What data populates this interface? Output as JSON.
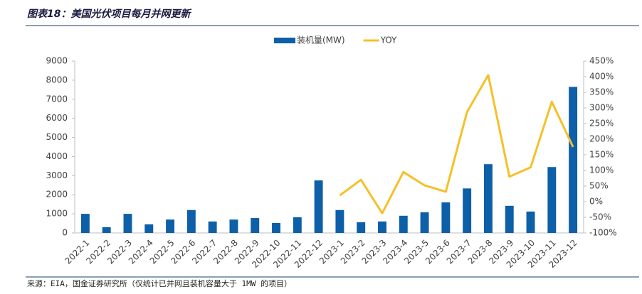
{
  "title": "图表18：美国光伏项目每月并网更新",
  "source": "来源：EIA，国金证券研究所（仅统计已并网且装机容量大于 1MW 的项目）",
  "chart_data": {
    "type": "bar",
    "categories": [
      "2022-1",
      "2022-2",
      "2022-3",
      "2022-4",
      "2022-5",
      "2022-6",
      "2022-7",
      "2022-8",
      "2022-9",
      "2022-10",
      "2022-11",
      "2022-12",
      "2023-1",
      "2023-2",
      "2023-3",
      "2023-4",
      "2023-5",
      "2023-6",
      "2023-7",
      "2023-8",
      "2023-9",
      "2023-10",
      "2023-11",
      "2023-12"
    ],
    "series": [
      {
        "name": "装机量(MW)",
        "type": "bar",
        "color": "#0d5fa8",
        "values": [
          1000,
          300,
          1000,
          450,
          700,
          1200,
          600,
          700,
          780,
          520,
          820,
          2750,
          1200,
          560,
          600,
          900,
          1080,
          1600,
          2330,
          3600,
          1420,
          1120,
          3450,
          7650
        ]
      },
      {
        "name": "YOY",
        "type": "line",
        "axis": "y2",
        "color": "#f5c02a",
        "values": [
          null,
          null,
          null,
          null,
          null,
          null,
          null,
          null,
          null,
          null,
          null,
          null,
          20,
          70,
          -37,
          95,
          52,
          32,
          287,
          405,
          80,
          110,
          320,
          175
        ]
      }
    ],
    "ylim": [
      0,
      9000
    ],
    "yticks": [
      0,
      1000,
      2000,
      3000,
      4000,
      5000,
      6000,
      7000,
      8000,
      9000
    ],
    "y2lim": [
      -100,
      450
    ],
    "y2ticks": [
      {
        "value": -100,
        "label": "-100%"
      },
      {
        "value": -50,
        "label": "-50%"
      },
      {
        "value": 0,
        "label": "0%"
      },
      {
        "value": 50,
        "label": "50%"
      },
      {
        "value": 100,
        "label": "100%"
      },
      {
        "value": 150,
        "label": "150%"
      },
      {
        "value": 200,
        "label": "200%"
      },
      {
        "value": 250,
        "label": "250%"
      },
      {
        "value": 300,
        "label": "300%"
      },
      {
        "value": 350,
        "label": "350%"
      },
      {
        "value": 400,
        "label": "400%"
      },
      {
        "value": 450,
        "label": "450%"
      }
    ],
    "legend": "top"
  }
}
